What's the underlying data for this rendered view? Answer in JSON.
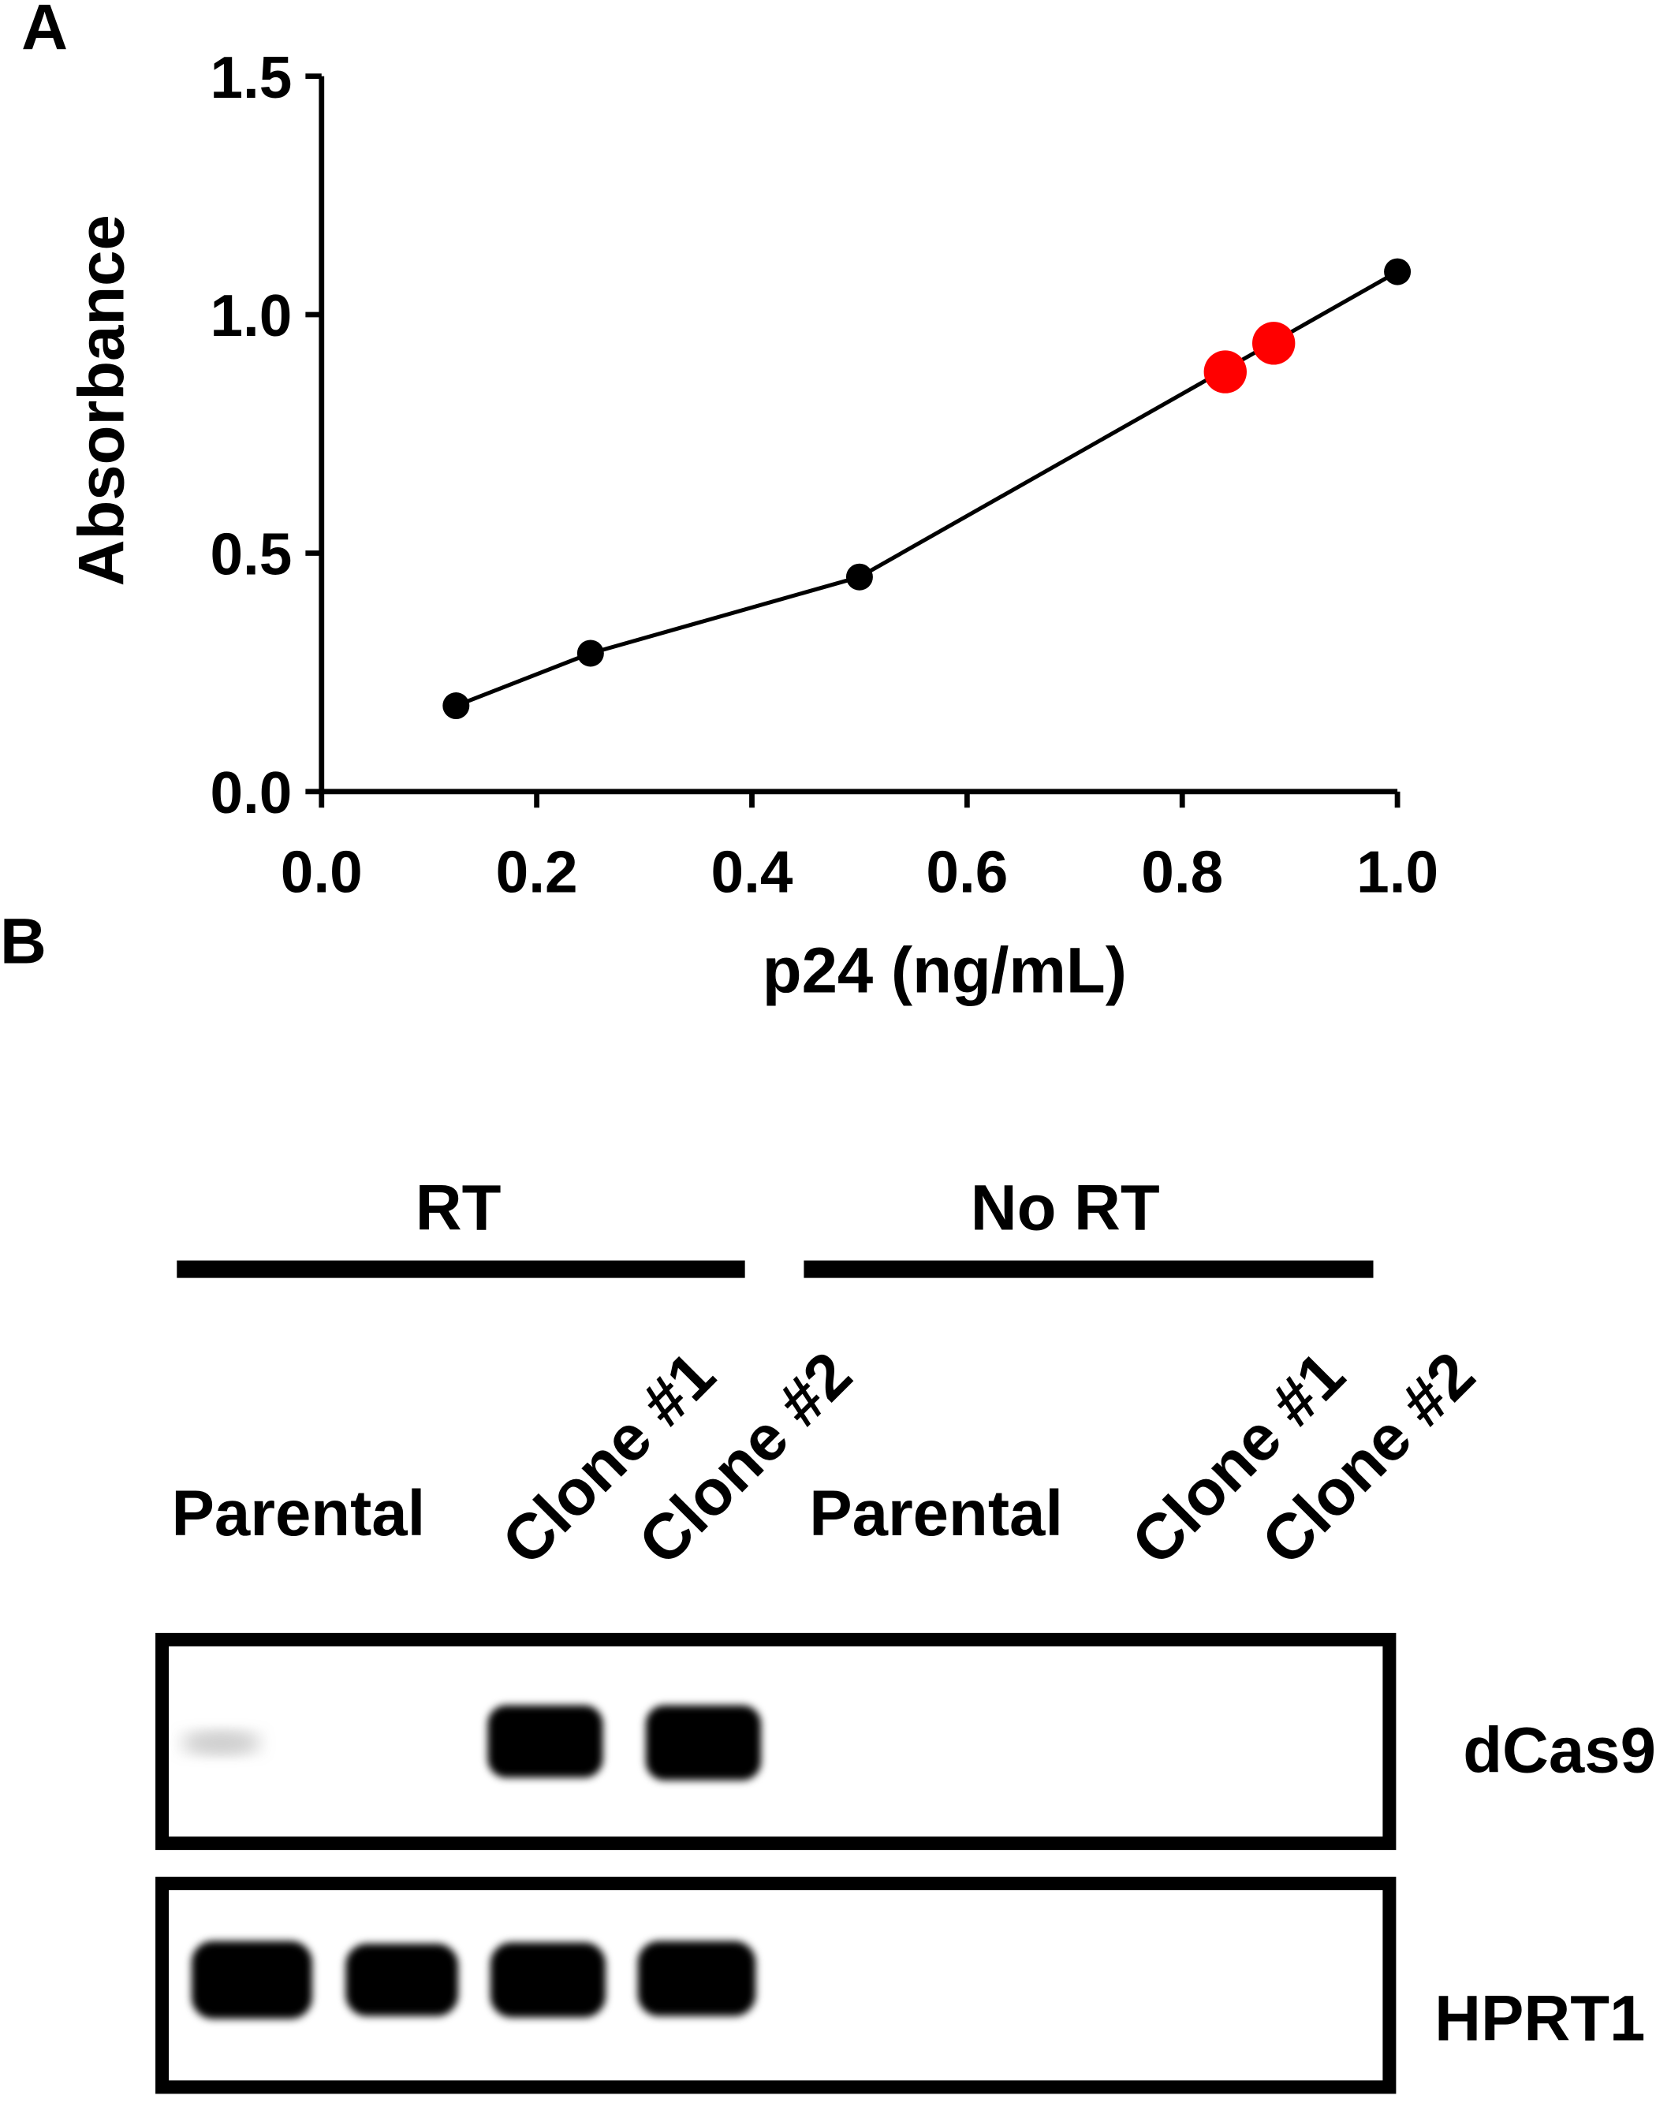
{
  "panels": [
    "A",
    "B"
  ],
  "chart_data": {
    "type": "line",
    "xlabel": "p24 (ng/mL)",
    "ylabel": "Absorbance",
    "xlim": [
      0,
      1
    ],
    "xticks": [
      {
        "value": 0,
        "label": "0.0"
      },
      0.2,
      0.4,
      0.6,
      0.8,
      {
        "value": 1,
        "label": "1.0"
      }
    ],
    "ylim": [
      0,
      1.5
    ],
    "yticks": [
      {
        "value": 0,
        "label": "0.0"
      },
      0.5,
      {
        "value": 1,
        "label": "1.0"
      },
      1.5
    ],
    "grid": false,
    "series": [
      {
        "color": "#000000",
        "line": true,
        "x": [
          0.125,
          0.25,
          0.5,
          1.0
        ],
        "values": [
          0.18,
          0.29,
          0.45,
          1.09
        ]
      },
      {
        "color": "#ff0000",
        "line": false,
        "x": [
          0.84,
          0.885
        ],
        "values": [
          0.88,
          0.94
        ]
      }
    ]
  },
  "gel": {
    "groups": [
      {
        "label": "RT",
        "lanes": [
          "Parental",
          "Clone #1",
          "Clone #2"
        ]
      },
      {
        "label": "No RT",
        "lanes": [
          "Parental",
          "Clone #1",
          "Clone #2"
        ]
      }
    ],
    "rows": [
      "dCas9",
      "HPRT1"
    ]
  }
}
